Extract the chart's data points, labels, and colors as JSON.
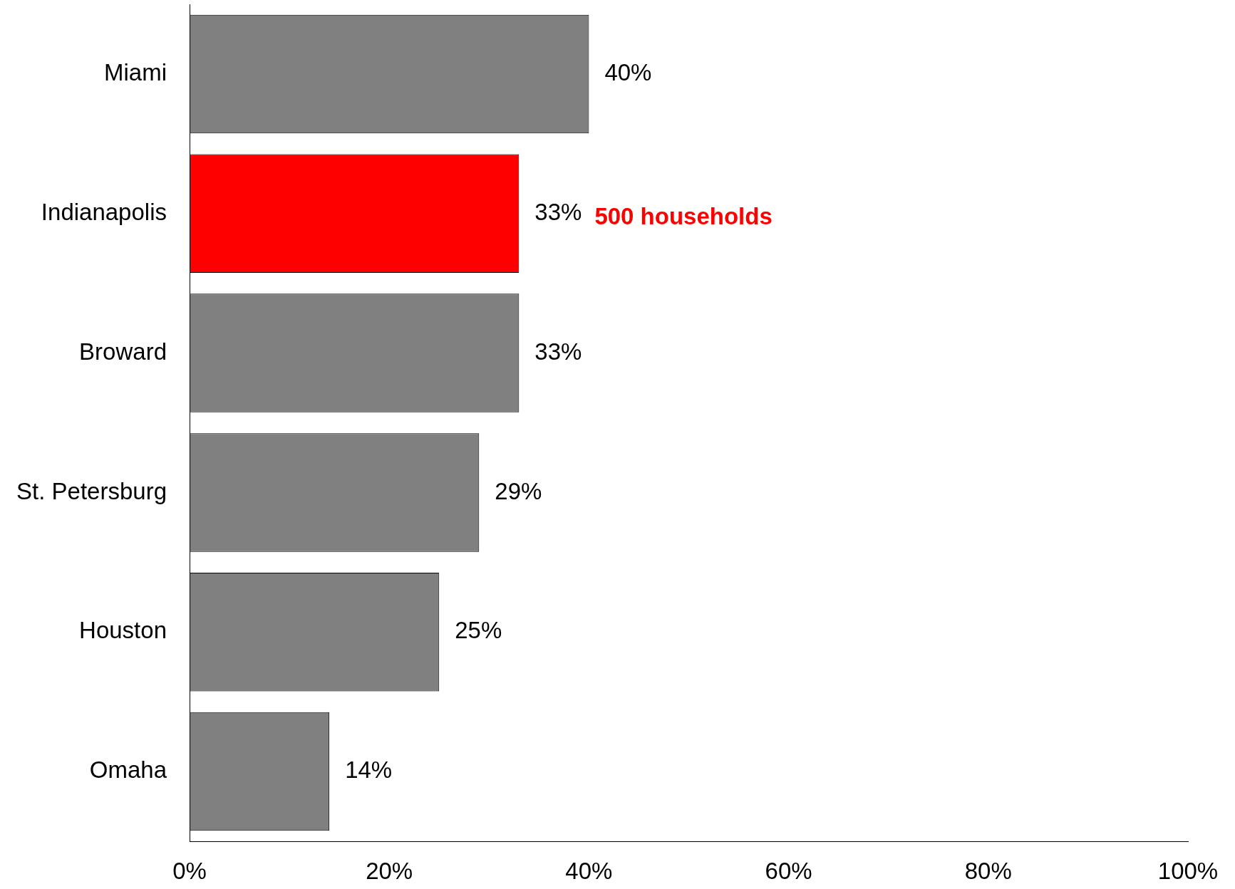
{
  "chart_data": {
    "type": "bar",
    "orientation": "horizontal",
    "categories": [
      "Miami",
      "Indianapolis",
      "Broward",
      "St. Petersburg",
      "Houston",
      "Omaha"
    ],
    "values": [
      40,
      33,
      33,
      29,
      25,
      14
    ],
    "colors": [
      "#808080",
      "#ff0000",
      "#808080",
      "#808080",
      "#808080",
      "#808080"
    ],
    "value_labels": [
      "40%",
      "33%",
      "33%",
      "29%",
      "25%",
      "14%"
    ],
    "annotations": [
      "500 households"
    ],
    "xlim": [
      0,
      100
    ],
    "xticks": [
      {
        "value": 0,
        "label": "0%"
      },
      {
        "value": 20,
        "label": "20%"
      },
      {
        "value": 40,
        "label": "40%"
      },
      {
        "value": 60,
        "label": "60%"
      },
      {
        "value": 80,
        "label": "80%"
      },
      {
        "value": 100,
        "label": "100%"
      }
    ],
    "grid": false,
    "legend": false
  }
}
